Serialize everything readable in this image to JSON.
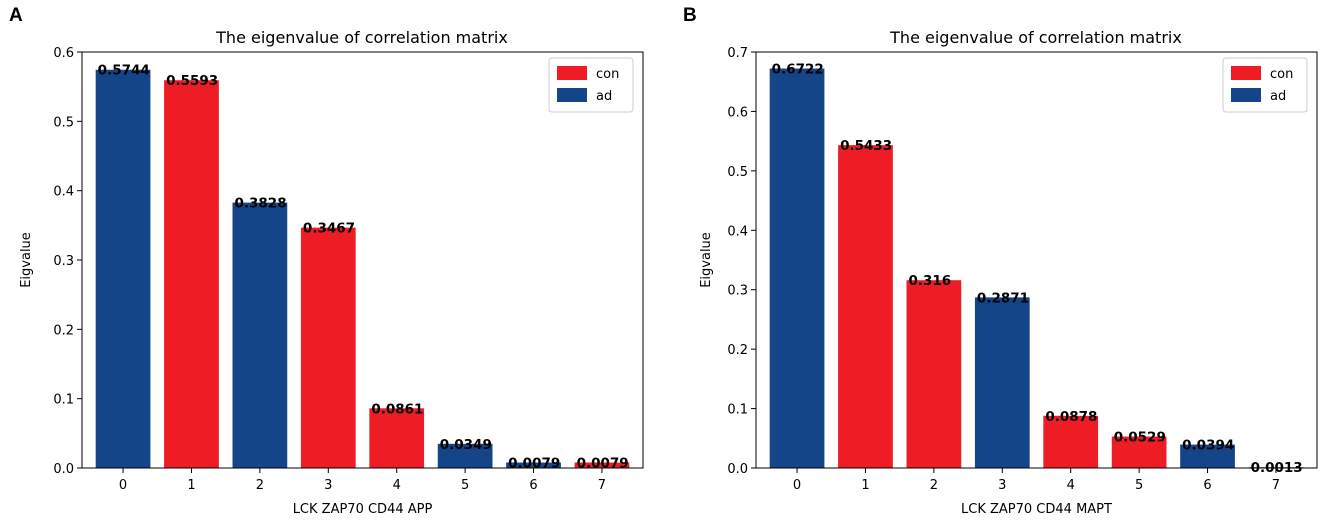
{
  "panels": [
    {
      "letter": "A",
      "chart_data": {
        "type": "bar",
        "title": "The eigenvalue of correlation matrix",
        "xlabel": "LCK ZAP70 CD44 APP",
        "ylabel": "Eigvalue",
        "categories": [
          "0",
          "1",
          "2",
          "3",
          "4",
          "5",
          "6",
          "7"
        ],
        "values": [
          0.5744,
          0.5593,
          0.3828,
          0.3467,
          0.0861,
          0.0349,
          0.0079,
          0.0079
        ],
        "value_labels": [
          "0.5744",
          "0.5593",
          "0.3828",
          "0.3467",
          "0.0861",
          "0.0349",
          "0.0079",
          "0.0079"
        ],
        "bar_groups": [
          "ad",
          "con",
          "ad",
          "con",
          "con",
          "ad",
          "ad",
          "con"
        ],
        "ylim": [
          0,
          0.6
        ],
        "yticks": [
          0.0,
          0.1,
          0.2,
          0.3,
          0.4,
          0.5,
          0.6
        ],
        "ytick_labels": [
          "0.0",
          "0.1",
          "0.2",
          "0.3",
          "0.4",
          "0.5",
          "0.6"
        ],
        "legend": [
          {
            "name": "con",
            "color": "#ee1c25"
          },
          {
            "name": "ad",
            "color": "#134588"
          }
        ],
        "legend_position": "top-right"
      }
    },
    {
      "letter": "B",
      "chart_data": {
        "type": "bar",
        "title": "The eigenvalue of correlation matrix",
        "xlabel": "LCK ZAP70 CD44 MAPT",
        "ylabel": "Eigvalue",
        "categories": [
          "0",
          "1",
          "2",
          "3",
          "4",
          "5",
          "6",
          "7"
        ],
        "values": [
          0.6722,
          0.5433,
          0.316,
          0.2871,
          0.0878,
          0.0529,
          0.0394,
          0.0013
        ],
        "value_labels": [
          "0.6722",
          "0.5433",
          "0.316",
          "0.2871",
          "0.0878",
          "0.0529",
          "0.0394",
          "0.0013"
        ],
        "bar_groups": [
          "ad",
          "con",
          "con",
          "ad",
          "con",
          "con",
          "ad",
          "ad"
        ],
        "ylim": [
          0,
          0.7
        ],
        "yticks": [
          0.0,
          0.1,
          0.2,
          0.3,
          0.4,
          0.5,
          0.6,
          0.7
        ],
        "ytick_labels": [
          "0.0",
          "0.1",
          "0.2",
          "0.3",
          "0.4",
          "0.5",
          "0.6",
          "0.7"
        ],
        "legend": [
          {
            "name": "con",
            "color": "#ee1c25"
          },
          {
            "name": "ad",
            "color": "#134588"
          }
        ],
        "legend_position": "top-right"
      }
    }
  ]
}
